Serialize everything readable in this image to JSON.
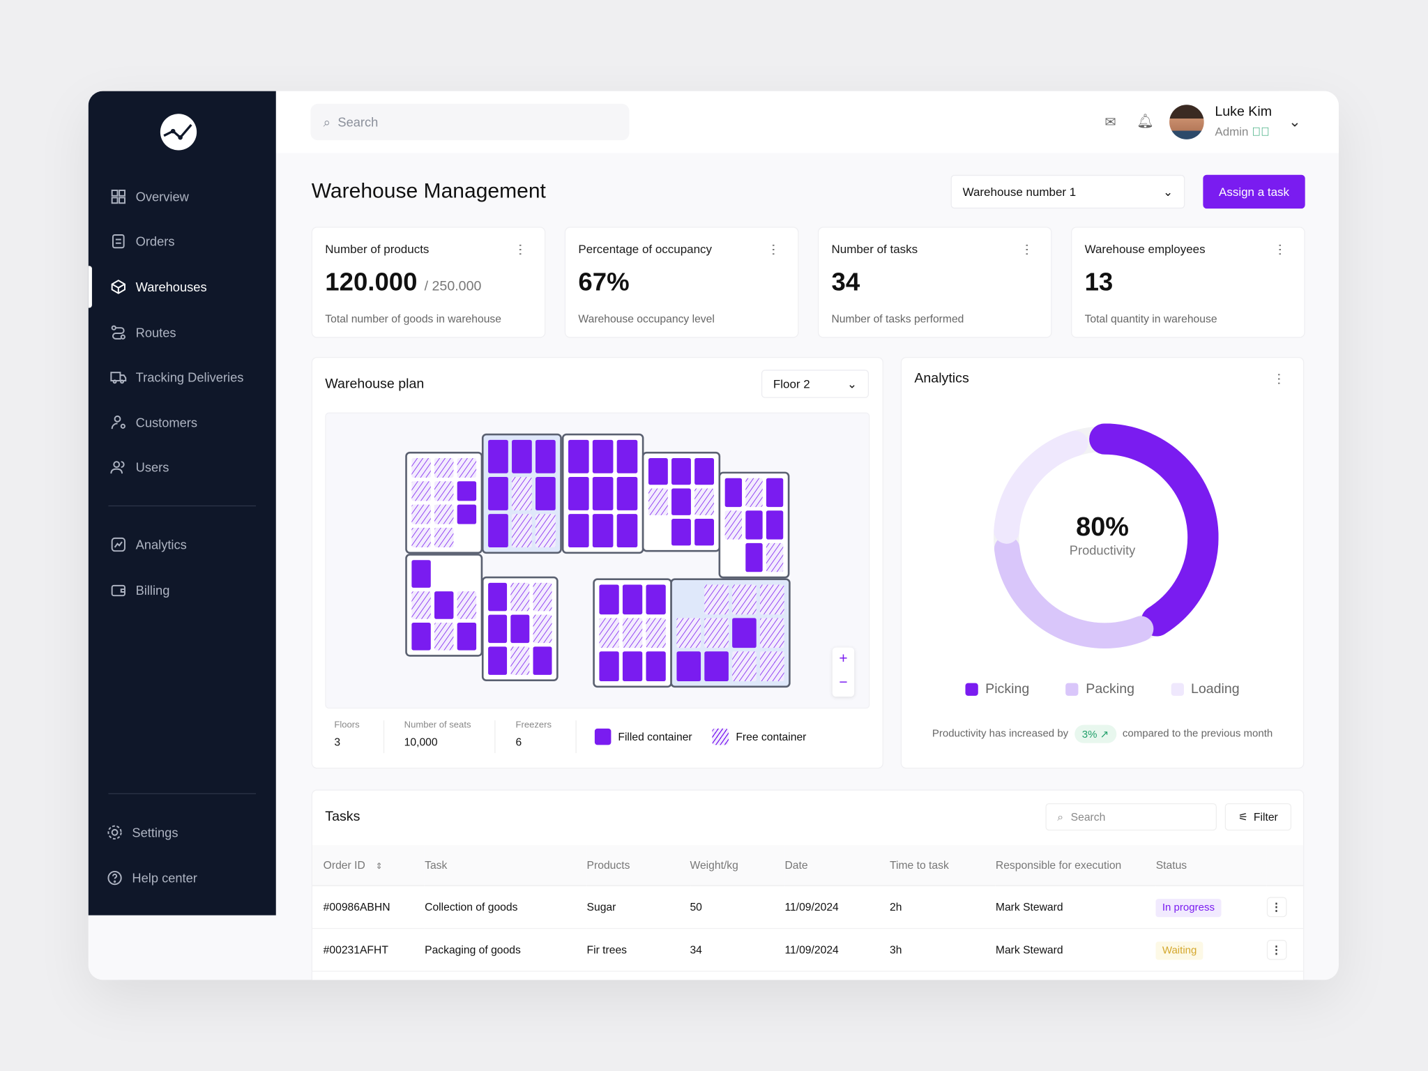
{
  "sidebar": {
    "items": [
      {
        "label": "Overview",
        "icon": "grid-icon"
      },
      {
        "label": "Orders",
        "icon": "document-icon"
      },
      {
        "label": "Warehouses",
        "icon": "box-icon",
        "active": true
      },
      {
        "label": "Routes",
        "icon": "route-icon"
      },
      {
        "label": "Tracking Deliveries",
        "icon": "truck-icon"
      },
      {
        "label": "Customers",
        "icon": "customer-icon"
      },
      {
        "label": "Users",
        "icon": "users-icon"
      },
      {
        "label": "Analytics",
        "icon": "chart-icon"
      },
      {
        "label": "Billing",
        "icon": "wallet-icon"
      }
    ],
    "bottom": [
      {
        "label": "Settings",
        "icon": "gear-icon"
      },
      {
        "label": "Help center",
        "icon": "help-icon"
      }
    ]
  },
  "header": {
    "search_placeholder": "Search",
    "user": {
      "name": "Luke Kim",
      "role": "Admin"
    }
  },
  "page": {
    "title": "Warehouse Management",
    "warehouse_select": "Warehouse number 1",
    "assign_label": "Assign a task"
  },
  "stats": [
    {
      "title": "Number of products",
      "value": "120.000",
      "suffix": "/ 250.000",
      "sub": "Total number of goods in warehouse"
    },
    {
      "title": "Percentage of occupancy",
      "value": "67%",
      "suffix": "",
      "sub": "Warehouse occupancy level"
    },
    {
      "title": "Number of tasks",
      "value": "34",
      "suffix": "",
      "sub": "Number of tasks performed"
    },
    {
      "title": "Warehouse employees",
      "value": "13",
      "suffix": "",
      "sub": "Total quantity in warehouse"
    }
  ],
  "plan": {
    "title": "Warehouse plan",
    "floor_select": "Floor 2",
    "rooms": [
      [
        "HHH",
        "HHF",
        "HHF",
        "HH."
      ],
      [
        "FFF",
        "FHF",
        "FHH"
      ],
      [
        "FFF",
        "FFF",
        "FFF"
      ],
      [
        "FFF",
        "HFH",
        ".FF"
      ],
      [
        "FHF",
        "HFF",
        ".FH"
      ],
      [
        "F..",
        "HFH",
        "FHF"
      ],
      [
        "FHH",
        "FFH",
        "FHF"
      ],
      [
        "FFF",
        "HHH",
        "FFF"
      ],
      [
        ".HHH",
        "HHFH",
        "FFHH"
      ]
    ],
    "info": [
      {
        "label": "Floors",
        "value": "3"
      },
      {
        "label": "Number of seats",
        "value": "10,000"
      },
      {
        "label": "Freezers",
        "value": "6"
      }
    ],
    "legend": {
      "filled": "Filled container",
      "free": "Free container"
    },
    "zoom_in": "+",
    "zoom_out": "−"
  },
  "analytics": {
    "title": "Analytics",
    "value": "80%",
    "label": "Productivity",
    "segments": [
      {
        "name": "Picking",
        "share": 0.45,
        "color": "#7a1cf0"
      },
      {
        "name": "Packing",
        "share": 0.3,
        "color": "#d9c6fa"
      },
      {
        "name": "Loading",
        "share": 0.2,
        "color": "#efe8fd"
      }
    ],
    "note_before": "Productivity has increased by",
    "note_badge": "3% ↗",
    "note_after": "compared to the previous month"
  },
  "tasks": {
    "title": "Tasks",
    "search_placeholder": "Search",
    "filter_label": "Filter",
    "columns": [
      "Order ID",
      "Task",
      "Products",
      "Weight/kg",
      "Date",
      "Time to task",
      "Responsible for execution",
      "Status"
    ],
    "rows": [
      {
        "id": "#00986ABHN",
        "task": "Collection of goods",
        "product": "Sugar",
        "weight": "50",
        "date": "11/09/2024",
        "time": "2h",
        "resp": "Mark Steward",
        "status": "In progress",
        "status_color": "#7a1cf0",
        "status_bg": "#f1eafe"
      },
      {
        "id": "#00231AFHT",
        "task": "Packaging of goods",
        "product": "Fir trees",
        "weight": "34",
        "date": "11/09/2024",
        "time": "3h",
        "resp": "Mark Steward",
        "status": "Waiting",
        "status_color": "#d4a72c",
        "status_bg": "#fdf9e6"
      }
    ]
  }
}
